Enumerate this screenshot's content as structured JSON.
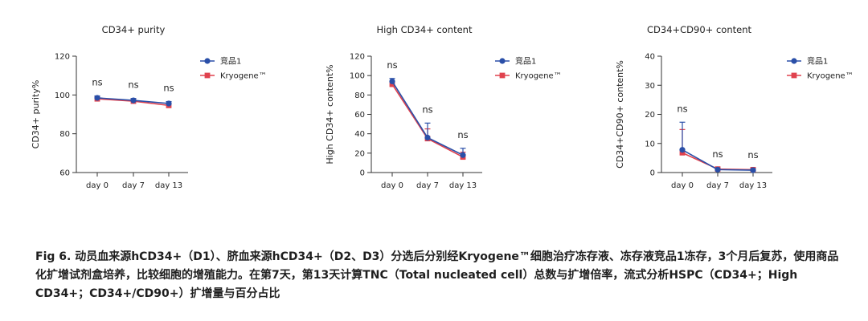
{
  "chart_data": [
    {
      "type": "line",
      "title": "CD34+ purity",
      "ylabel": "CD34+ purity%",
      "xlabel": "",
      "categories": [
        "day 0",
        "day 7",
        "day 13"
      ],
      "ylim": [
        60,
        120
      ],
      "yticks": [
        60,
        80,
        100,
        120
      ],
      "series": [
        {
          "name": "竞品1",
          "color": "#2a4fa8",
          "marker": "circle",
          "values": [
            98.5,
            97.2,
            95.6
          ],
          "err": [
            1.0,
            1.0,
            1.0
          ]
        },
        {
          "name": "Kryogene™",
          "color": "#e0424e",
          "marker": "square",
          "values": [
            98.0,
            96.8,
            94.6
          ],
          "err": [
            1.0,
            1.0,
            1.0
          ]
        }
      ],
      "annotations": [
        "ns",
        "ns",
        "ns"
      ],
      "legend": "top-right"
    },
    {
      "type": "line",
      "title": "High CD34+ content",
      "ylabel": "High CD34+ content%",
      "xlabel": "",
      "categories": [
        "day 0",
        "day 7",
        "day 13"
      ],
      "ylim": [
        0,
        120
      ],
      "yticks": [
        0,
        20,
        40,
        60,
        80,
        100,
        120
      ],
      "series": [
        {
          "name": "竞品1",
          "color": "#2a4fa8",
          "marker": "circle",
          "values": [
            94,
            36,
            18
          ],
          "err": [
            3,
            15,
            7
          ]
        },
        {
          "name": "Kryogene™",
          "color": "#e0424e",
          "marker": "square",
          "values": [
            91,
            35,
            16
          ],
          "err": [
            3,
            10,
            5
          ]
        }
      ],
      "annotations": [
        "ns",
        "ns",
        "ns"
      ],
      "legend": "top-right"
    },
    {
      "type": "line",
      "title": "CD34+CD90+ content",
      "ylabel": "CD34+CD90+ content%",
      "xlabel": "",
      "categories": [
        "day 0",
        "day 7",
        "day 13"
      ],
      "ylim": [
        0,
        40
      ],
      "yticks": [
        0,
        10,
        20,
        30,
        40
      ],
      "series": [
        {
          "name": "竞品1",
          "color": "#2a4fa8",
          "marker": "circle",
          "values": [
            7.8,
            1.0,
            0.8
          ],
          "err": [
            9.5,
            0.4,
            0.5
          ]
        },
        {
          "name": "Kryogene™",
          "color": "#e0424e",
          "marker": "square",
          "values": [
            6.8,
            1.2,
            1.0
          ],
          "err": [
            8.0,
            0.4,
            0.4
          ]
        }
      ],
      "annotations": [
        "ns",
        "ns",
        "ns"
      ],
      "legend": "top-right"
    }
  ],
  "caption": {
    "text": "Fig 6.   动员血来源hCD34+（D1）、脐血来源hCD34+（D2、D3）分选后分别经Kryogene™细胞治疗冻存液、冻存液竞品1冻存，3个月后复苏，使用商品化扩增试剂盒培养，比较细胞的增殖能力。在第7天，第13天计算TNC（Total nucleated cell）总数与扩增倍率，流式分析HSPC（CD34+；High CD34+；CD34+/CD90+）扩增量与百分占比"
  }
}
